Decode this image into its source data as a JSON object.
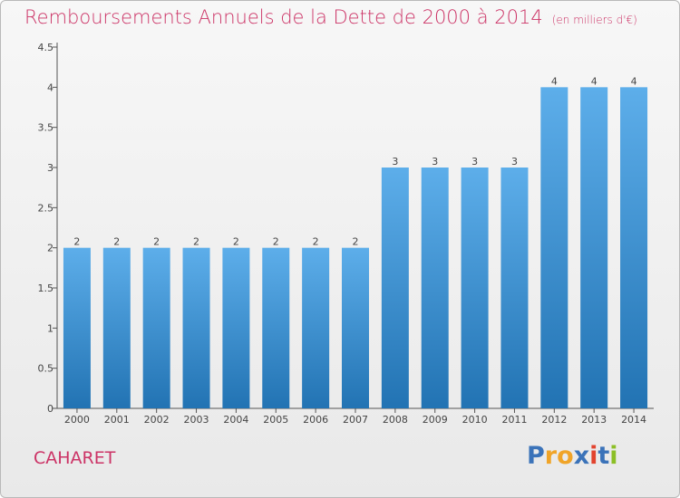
{
  "header": {
    "title": "Remboursements Annuels de la Dette de 2000 à 2014",
    "unit": "(en milliers d'€)"
  },
  "footer": {
    "commune": "CAHARET",
    "logo_letters": [
      "P",
      "r",
      "o",
      "x",
      "i",
      "t",
      "i"
    ],
    "logo_colors": [
      "#3b73b9",
      "#f0a428",
      "#f0a428",
      "#3b73b9",
      "#e2442f",
      "#3b73b9",
      "#8cbf26"
    ]
  },
  "colors": {
    "bar_light": "#5daeea",
    "bar_dark": "#2273b3",
    "title": "#cc3366",
    "axis": "#555555"
  },
  "chart_data": {
    "type": "bar",
    "title": "Remboursements Annuels de la Dette de 2000 à 2014",
    "xlabel": "",
    "ylabel": "",
    "categories": [
      "2000",
      "2001",
      "2002",
      "2003",
      "2004",
      "2005",
      "2006",
      "2007",
      "2008",
      "2009",
      "2010",
      "2011",
      "2012",
      "2013",
      "2014"
    ],
    "values": [
      2,
      2,
      2,
      2,
      2,
      2,
      2,
      2,
      3,
      3,
      3,
      3,
      4,
      4,
      4
    ],
    "value_labels": [
      "2",
      "2",
      "2",
      "2",
      "2",
      "2",
      "2",
      "2",
      "3",
      "3",
      "3",
      "3",
      "4",
      "4",
      "4"
    ],
    "ylim": [
      0,
      4.5
    ],
    "yticks": [
      0,
      0.5,
      1,
      1.5,
      2,
      2.5,
      3,
      3.5,
      4,
      4.5
    ],
    "ytick_labels": [
      "0",
      "0.5",
      "1",
      "1.5",
      "2",
      "2.5",
      "3",
      "3.5",
      "4",
      "4.5"
    ],
    "grid": false,
    "legend": "none"
  }
}
